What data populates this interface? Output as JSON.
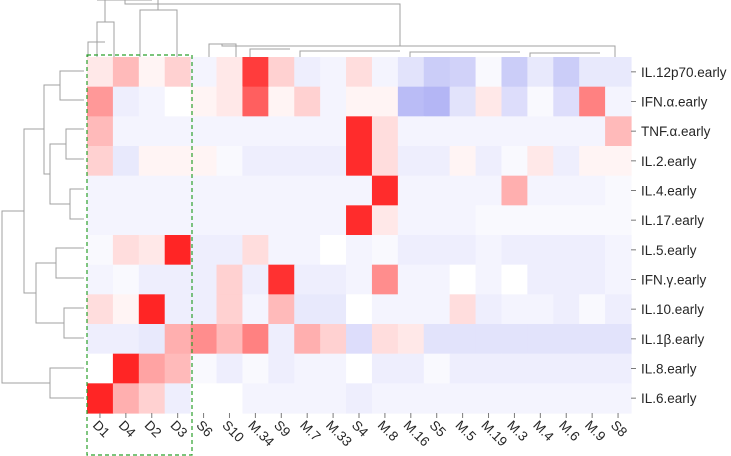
{
  "chart_data": {
    "type": "heatmap",
    "title": "",
    "color_scale": {
      "low": "#8c8ff0",
      "mid": "#ffffff",
      "high": "#ff1a1a",
      "range": [
        -1,
        1
      ]
    },
    "highlight_box": {
      "columns": [
        "D1",
        "D4",
        "D2",
        "D3"
      ],
      "color": "#2ca02c",
      "style": "dashed"
    },
    "columns": [
      "D1",
      "D4",
      "D2",
      "D3",
      "S6",
      "S10",
      "M.34",
      "S9",
      "M.7",
      "M.33",
      "S4",
      "M.8",
      "M.16",
      "S5",
      "M.5",
      "M.19",
      "M.3",
      "M.4",
      "M.6",
      "M.9",
      "S8"
    ],
    "rows": [
      "IL.12p70.early",
      "IFN.α.early",
      "TNF.α.early",
      "IL.2.early",
      "IL.4.early",
      "IL.17.early",
      "IL.5.early",
      "IFN.γ.early",
      "IL.10.early",
      "IL.1β.early",
      "IL.8.early",
      "IL.6.early"
    ],
    "values": [
      [
        0.1,
        0.3,
        0.05,
        0.2,
        -0.1,
        0.1,
        0.85,
        0.2,
        -0.15,
        -0.1,
        0.15,
        -0.1,
        -0.25,
        -0.45,
        -0.4,
        -0.05,
        -0.45,
        -0.2,
        -0.45,
        -0.2,
        -0.2
      ],
      [
        0.45,
        -0.15,
        -0.1,
        0.0,
        0.05,
        0.1,
        0.7,
        0.05,
        0.2,
        -0.1,
        0.05,
        0.05,
        -0.6,
        -0.65,
        -0.25,
        0.1,
        -0.3,
        -0.05,
        -0.3,
        0.55,
        -0.1
      ],
      [
        0.3,
        -0.1,
        -0.1,
        -0.1,
        -0.1,
        -0.1,
        -0.1,
        -0.1,
        -0.1,
        -0.1,
        0.92,
        0.15,
        -0.1,
        -0.1,
        -0.1,
        -0.1,
        -0.1,
        -0.1,
        -0.1,
        -0.1,
        0.3
      ],
      [
        0.2,
        -0.2,
        0.05,
        0.05,
        0.05,
        -0.05,
        -0.15,
        -0.15,
        -0.15,
        -0.15,
        0.92,
        0.15,
        -0.15,
        -0.15,
        0.05,
        -0.15,
        -0.05,
        0.1,
        -0.15,
        0.05,
        0.05
      ],
      [
        -0.1,
        -0.1,
        -0.1,
        -0.1,
        -0.1,
        -0.1,
        -0.1,
        -0.1,
        -0.1,
        -0.1,
        -0.1,
        0.92,
        -0.1,
        -0.1,
        -0.1,
        -0.1,
        0.35,
        -0.1,
        -0.1,
        -0.1,
        -0.05
      ],
      [
        -0.1,
        -0.1,
        -0.1,
        -0.1,
        -0.1,
        -0.1,
        -0.1,
        -0.1,
        -0.1,
        -0.1,
        0.92,
        0.1,
        -0.1,
        -0.1,
        -0.1,
        -0.05,
        -0.05,
        -0.05,
        -0.05,
        -0.05,
        -0.05
      ],
      [
        -0.05,
        0.15,
        0.1,
        0.95,
        -0.15,
        -0.15,
        0.15,
        -0.1,
        -0.1,
        0.0,
        -0.1,
        -0.05,
        -0.15,
        -0.15,
        -0.15,
        -0.1,
        -0.15,
        -0.15,
        -0.15,
        -0.15,
        -0.1
      ],
      [
        -0.1,
        -0.05,
        -0.15,
        -0.15,
        -0.15,
        0.2,
        -0.15,
        0.9,
        -0.15,
        -0.15,
        -0.1,
        0.5,
        -0.1,
        -0.1,
        0.0,
        -0.1,
        0.0,
        -0.15,
        -0.15,
        -0.15,
        -0.1
      ],
      [
        0.15,
        0.05,
        0.95,
        -0.15,
        -0.15,
        0.2,
        -0.1,
        0.3,
        -0.2,
        -0.2,
        0.0,
        -0.1,
        -0.1,
        -0.1,
        0.15,
        -0.15,
        -0.1,
        -0.1,
        -0.15,
        -0.05,
        -0.15
      ],
      [
        -0.15,
        -0.15,
        -0.2,
        0.35,
        0.5,
        0.3,
        0.55,
        -0.15,
        0.35,
        0.2,
        -0.3,
        0.15,
        0.1,
        -0.25,
        -0.25,
        -0.25,
        -0.25,
        -0.25,
        -0.25,
        -0.25,
        -0.25
      ],
      [
        0.0,
        0.95,
        0.4,
        0.3,
        -0.05,
        -0.15,
        -0.05,
        -0.15,
        -0.1,
        -0.1,
        0.0,
        -0.15,
        -0.15,
        -0.05,
        -0.15,
        -0.15,
        -0.15,
        -0.15,
        -0.15,
        -0.15,
        -0.15
      ],
      [
        0.95,
        0.35,
        0.2,
        -0.15,
        0.0,
        0.0,
        -0.1,
        -0.1,
        -0.1,
        -0.1,
        -0.15,
        -0.1,
        -0.1,
        -0.1,
        -0.1,
        -0.1,
        -0.1,
        -0.1,
        -0.1,
        -0.1,
        -0.1
      ]
    ]
  }
}
